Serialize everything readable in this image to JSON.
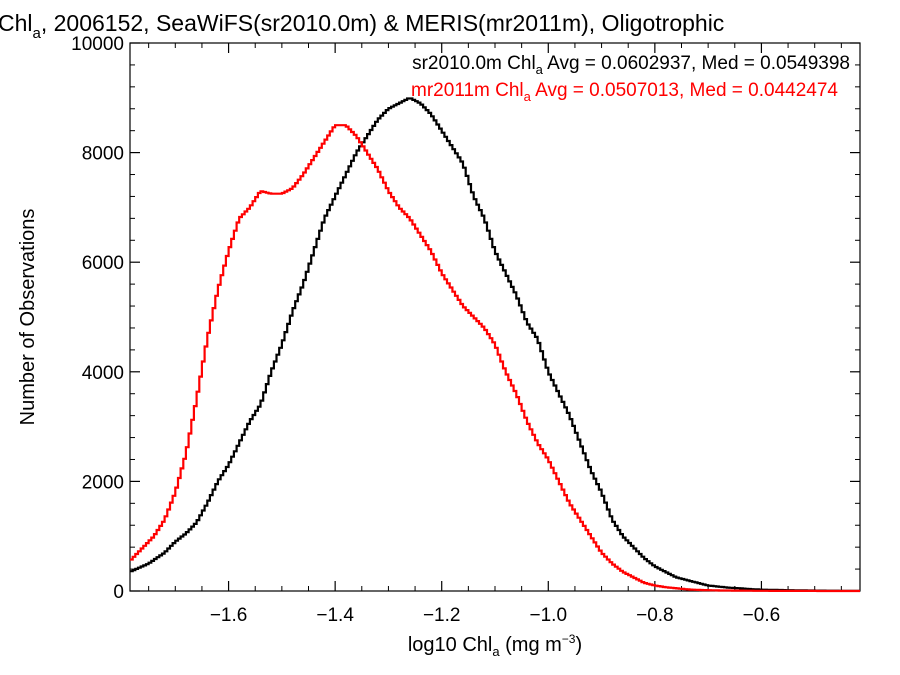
{
  "chart_data": {
    "type": "line",
    "title": {
      "main": "Chl",
      "main_sub": "a",
      "rest": ", 2006152, SeaWiFS(sr2010.0m) & MERIS(mr2011m), Oligotrophic"
    },
    "xlabel": {
      "pre": "log10 Chl",
      "sub": "a",
      "post": " (mg m",
      "sup": "−3",
      "close": ")"
    },
    "ylabel": "Number of Observations",
    "xlim": [
      -1.785,
      -0.415
    ],
    "ylim": [
      0,
      10000
    ],
    "x_ticks": [
      -1.6,
      -1.4,
      -1.2,
      -1.0,
      -0.8,
      -0.6
    ],
    "x_tick_labels": [
      "−1.6",
      "−1.4",
      "−1.2",
      "−1.0",
      "−0.8",
      "−0.6"
    ],
    "y_ticks": [
      0,
      2000,
      4000,
      6000,
      8000,
      10000
    ],
    "y_tick_labels": [
      "0",
      "2000",
      "4000",
      "6000",
      "8000",
      "10000"
    ],
    "grid": false,
    "annotations": [
      {
        "series": "sr2010.0m",
        "color": "#000000",
        "pre": "sr2010.0m Chl",
        "sub": "a",
        "post": " Avg = 0.0602937, Med = 0.0549398"
      },
      {
        "series": "mr2011m",
        "color": "#ff0000",
        "pre": "mr2011m Chl",
        "sub": "a",
        "post": " Avg = 0.0507013, Med = 0.0442474"
      }
    ],
    "series": [
      {
        "name": "sr2010.0m",
        "color": "#000000",
        "x": [
          -1.785,
          -1.75,
          -1.72,
          -1.7,
          -1.68,
          -1.66,
          -1.64,
          -1.62,
          -1.6,
          -1.58,
          -1.56,
          -1.54,
          -1.52,
          -1.5,
          -1.48,
          -1.46,
          -1.44,
          -1.42,
          -1.4,
          -1.38,
          -1.36,
          -1.34,
          -1.32,
          -1.3,
          -1.28,
          -1.26,
          -1.24,
          -1.22,
          -1.2,
          -1.18,
          -1.16,
          -1.14,
          -1.12,
          -1.1,
          -1.08,
          -1.06,
          -1.04,
          -1.02,
          -1.0,
          -0.98,
          -0.96,
          -0.94,
          -0.92,
          -0.9,
          -0.88,
          -0.86,
          -0.84,
          -0.82,
          -0.8,
          -0.78,
          -0.76,
          -0.74,
          -0.72,
          -0.7,
          -0.68,
          -0.66,
          -0.64,
          -0.62,
          -0.6,
          -0.55,
          -0.5,
          -0.45,
          -0.415
        ],
        "y": [
          350,
          500,
          700,
          900,
          1050,
          1250,
          1600,
          2000,
          2300,
          2700,
          3100,
          3400,
          4000,
          4500,
          5100,
          5600,
          6200,
          6800,
          7200,
          7600,
          8000,
          8300,
          8600,
          8800,
          8900,
          9000,
          8900,
          8700,
          8400,
          8100,
          7800,
          7200,
          6800,
          6200,
          5800,
          5400,
          4900,
          4600,
          4000,
          3600,
          3200,
          2700,
          2200,
          1800,
          1300,
          1000,
          800,
          600,
          450,
          350,
          250,
          200,
          150,
          100,
          80,
          60,
          50,
          35,
          25,
          15,
          8,
          4,
          2
        ]
      },
      {
        "name": "mr2011m",
        "color": "#ff0000",
        "x": [
          -1.785,
          -1.76,
          -1.74,
          -1.72,
          -1.7,
          -1.68,
          -1.66,
          -1.64,
          -1.62,
          -1.6,
          -1.58,
          -1.56,
          -1.54,
          -1.52,
          -1.5,
          -1.48,
          -1.46,
          -1.44,
          -1.42,
          -1.4,
          -1.38,
          -1.36,
          -1.34,
          -1.32,
          -1.3,
          -1.28,
          -1.26,
          -1.24,
          -1.22,
          -1.2,
          -1.18,
          -1.16,
          -1.14,
          -1.12,
          -1.1,
          -1.08,
          -1.06,
          -1.04,
          -1.02,
          -1.0,
          -0.98,
          -0.96,
          -0.94,
          -0.92,
          -0.9,
          -0.88,
          -0.86,
          -0.84,
          -0.82,
          -0.8,
          -0.78,
          -0.76,
          -0.74,
          -0.72,
          -0.7,
          -0.68,
          -0.65,
          -0.62,
          -0.6,
          -0.55,
          -0.5,
          -0.45,
          -0.415
        ],
        "y": [
          550,
          800,
          1000,
          1300,
          1800,
          2500,
          3500,
          4600,
          5500,
          6200,
          6800,
          7000,
          7300,
          7250,
          7250,
          7350,
          7600,
          7900,
          8200,
          8500,
          8500,
          8300,
          8000,
          7700,
          7300,
          7000,
          6800,
          6500,
          6200,
          5800,
          5500,
          5200,
          5000,
          4800,
          4500,
          4000,
          3600,
          3100,
          2700,
          2400,
          2000,
          1600,
          1300,
          1000,
          700,
          500,
          350,
          250,
          150,
          100,
          70,
          50,
          30,
          20,
          15,
          10,
          8,
          5,
          3,
          2,
          1,
          0,
          0
        ]
      }
    ]
  }
}
